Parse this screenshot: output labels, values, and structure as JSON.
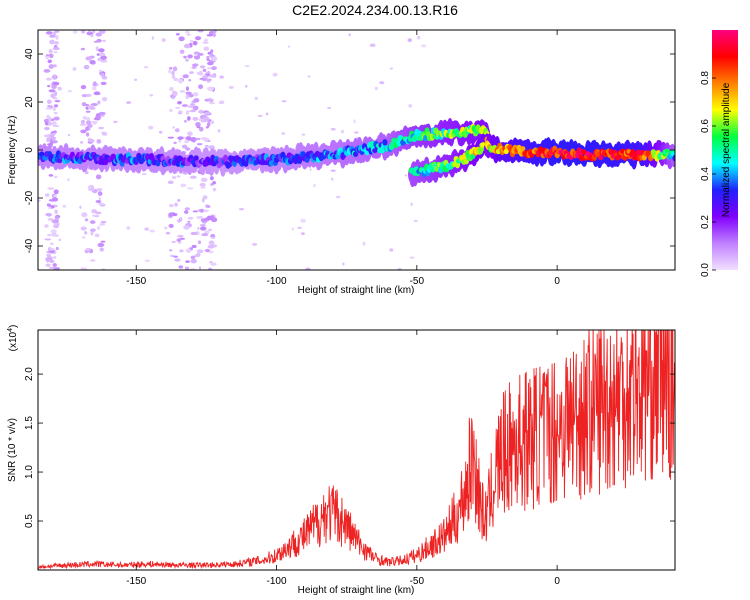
{
  "title": "C2E2.2024.234.00.13.R16",
  "chart_data": [
    {
      "type": "heatmap",
      "name": "spectrogram",
      "xlabel": "Height of straight line (km)",
      "ylabel": "Frequency (Hz)",
      "xlim": [
        -185,
        42
      ],
      "ylim": [
        -50,
        50
      ],
      "xticks": [
        -150,
        -100,
        -50,
        0
      ],
      "yticks": [
        -40,
        -20,
        0,
        20,
        40
      ],
      "colorbar": {
        "label": "Normalized spectral amplitude",
        "range": [
          0,
          1
        ],
        "ticks": [
          0.0,
          0.2,
          0.4,
          0.6,
          0.8
        ],
        "tick_labels": [
          "0.0",
          "0.2",
          "0.4",
          "0.6",
          "0.8"
        ],
        "colormap": [
          "#f0e0ff",
          "#c080ff",
          "#8000ff",
          "#2020ff",
          "#00ffff",
          "#00ff40",
          "#ffff00",
          "#ff8000",
          "#ff0000",
          "#ff0080"
        ]
      },
      "traces": [
        {
          "x": [
            -185,
            -150,
            -120,
            -100,
            -80,
            -60,
            -50,
            -40,
            -30,
            -25
          ],
          "y": [
            -3,
            -4,
            -5,
            -4,
            -2,
            2,
            6,
            7,
            8,
            8
          ],
          "amplitude": [
            0.3,
            0.3,
            0.25,
            0.3,
            0.35,
            0.4,
            0.5,
            0.55,
            0.6,
            0.6
          ]
        },
        {
          "x": [
            -52,
            -45,
            -38,
            -32,
            -28,
            -25
          ],
          "y": [
            -10,
            -8,
            -6,
            -3,
            0,
            3
          ],
          "amplitude": [
            0.45,
            0.5,
            0.55,
            0.6,
            0.65,
            0.7
          ]
        },
        {
          "x": [
            -25,
            -20,
            -10,
            0,
            10,
            20,
            30,
            42
          ],
          "y": [
            2,
            0,
            -1,
            -1,
            -2,
            -2,
            -2,
            -2
          ],
          "amplitude": [
            0.6,
            0.75,
            0.85,
            0.9,
            0.9,
            0.88,
            0.85,
            0.4
          ]
        }
      ]
    },
    {
      "type": "line",
      "name": "snr",
      "xlabel": "Height of straight line (km)",
      "ylabel": "SNR (10 * v/v)",
      "yscale_label": "(x10",
      "yscale_exponent": "4",
      "xlim": [
        -185,
        42
      ],
      "ylim": [
        0,
        2.45
      ],
      "xticks": [
        -150,
        -100,
        -50,
        0
      ],
      "yticks": [
        0.5,
        1.0,
        1.5,
        2.0
      ],
      "ytick_labels": [
        "0.5",
        "1.0",
        "1.5",
        "2.0"
      ],
      "color": "#ee2222",
      "x": [
        -185,
        -175,
        -165,
        -155,
        -145,
        -135,
        -125,
        -115,
        -105,
        -100,
        -95,
        -90,
        -85,
        -82,
        -78,
        -75,
        -70,
        -65,
        -60,
        -55,
        -50,
        -45,
        -40,
        -35,
        -32,
        -30,
        -28,
        -26,
        -24,
        -22,
        -20,
        -15,
        -10,
        -5,
        0,
        5,
        10,
        15,
        20,
        25,
        30,
        35,
        40,
        42
      ],
      "y": [
        0.03,
        0.05,
        0.06,
        0.05,
        0.06,
        0.05,
        0.05,
        0.06,
        0.1,
        0.15,
        0.25,
        0.35,
        0.5,
        0.6,
        0.55,
        0.45,
        0.25,
        0.12,
        0.08,
        0.1,
        0.15,
        0.25,
        0.35,
        0.6,
        0.9,
        1.2,
        0.8,
        0.5,
        0.7,
        1.0,
        1.15,
        1.3,
        1.35,
        1.4,
        1.45,
        1.55,
        1.6,
        1.7,
        1.75,
        1.85,
        1.9,
        2.0,
        1.95,
        1.9
      ]
    }
  ]
}
